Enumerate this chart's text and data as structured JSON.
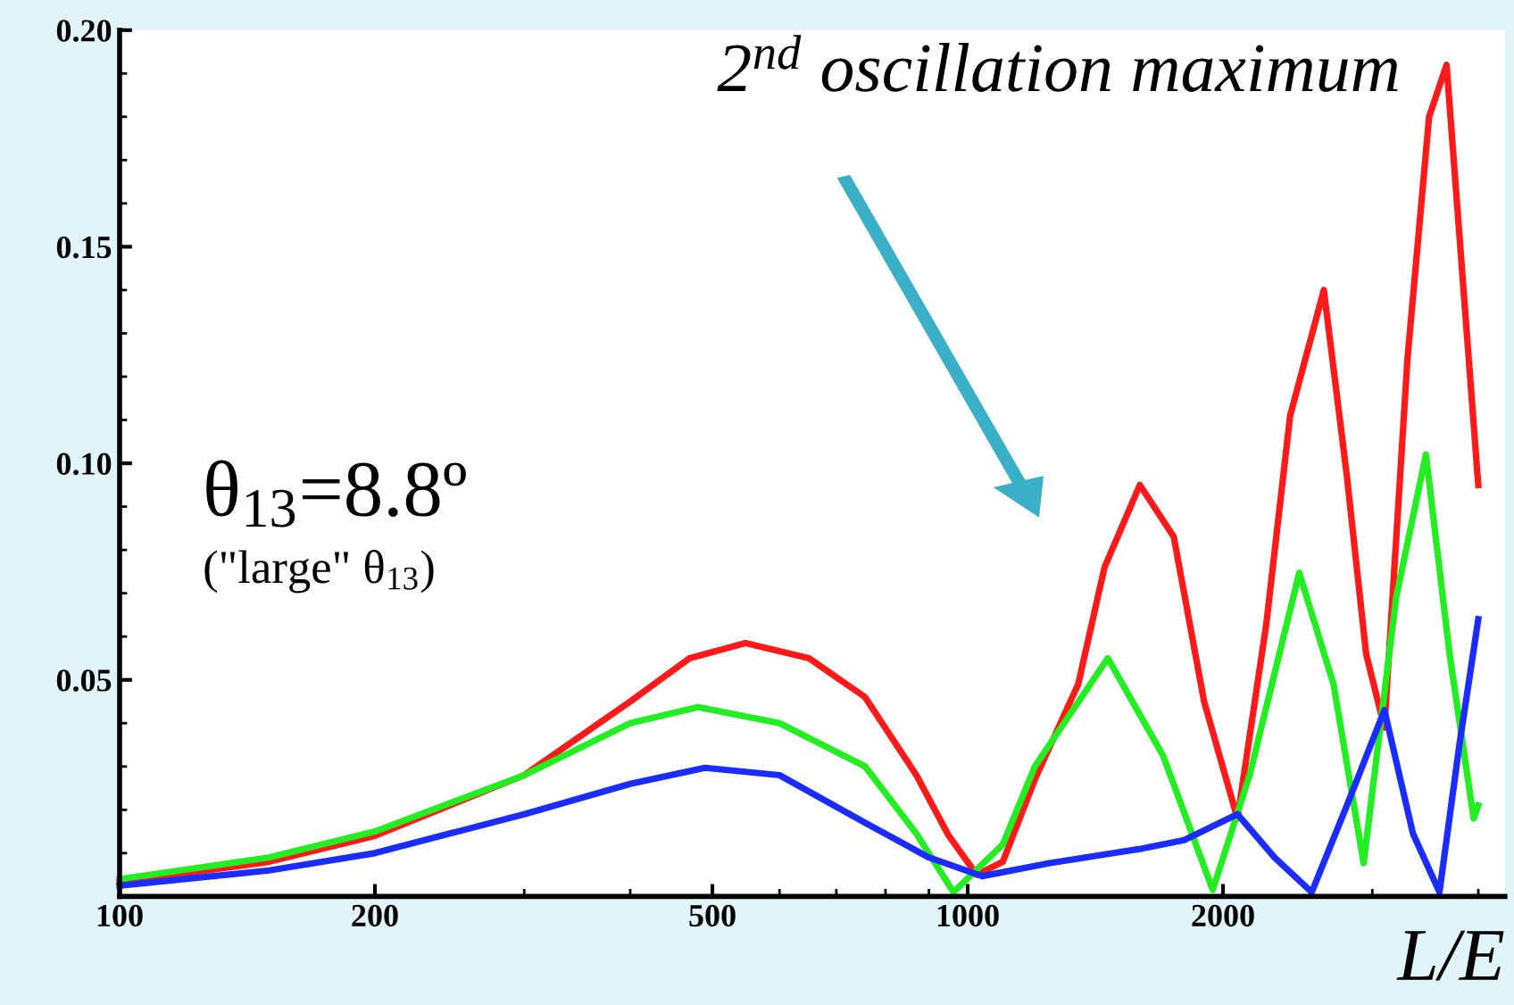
{
  "chart_data": {
    "type": "line",
    "xlabel": "L/E",
    "log": "x",
    "grid": false,
    "legend": false,
    "marker": "none",
    "line_style": "solid",
    "xlim": [
      100,
      4300
    ],
    "ylim": [
      0,
      0.2
    ],
    "xticks": [
      100,
      200,
      500,
      1000,
      2000
    ],
    "yticks": [
      0.05,
      {
        "value": 0.1,
        "label": "0.10"
      },
      0.15,
      {
        "value": 0.2,
        "label": "0.20"
      }
    ],
    "tick_labels": true,
    "annotations": [
      "2$^{nd}$ oscillation maximum",
      "θ$_{13}$=8.8º",
      "(\"large\" θ$_{13}$)"
    ],
    "series": [
      {
        "color": "#ff1a1a",
        "x": [
          100,
          150,
          200,
          300,
          400,
          470,
          547,
          650,
          757,
          870,
          950,
          1025,
          1100,
          1200,
          1350,
          1450,
          1596,
          1750,
          1900,
          2080,
          2250,
          2400,
          2630,
          2800,
          2950,
          3100,
          3300,
          3500,
          3670,
          3850,
          4000
        ],
        "values": [
          0.0033,
          0.008,
          0.014,
          0.028,
          0.045,
          0.055,
          0.0585,
          0.055,
          0.046,
          0.028,
          0.014,
          0.005,
          0.008,
          0.027,
          0.049,
          0.076,
          0.095,
          0.083,
          0.045,
          0.018,
          0.063,
          0.111,
          0.14,
          0.097,
          0.056,
          0.039,
          0.124,
          0.18,
          0.192,
          0.138,
          0.095
        ]
      },
      {
        "color": "#22ee22",
        "x": [
          100,
          150,
          200,
          300,
          400,
          481,
          600,
          757,
          870,
          962,
          1100,
          1200,
          1463,
          1700,
          1945,
          2150,
          2460,
          2700,
          2930,
          3200,
          3470,
          3700,
          3950,
          4000
        ],
        "values": [
          0.004,
          0.009,
          0.015,
          0.028,
          0.04,
          0.0437,
          0.04,
          0.03,
          0.0145,
          0.001,
          0.012,
          0.03,
          0.055,
          0.0325,
          0.0015,
          0.028,
          0.0747,
          0.049,
          0.0077,
          0.069,
          0.102,
          0.056,
          0.018,
          0.021
        ]
      },
      {
        "color": "#1a2cff",
        "x": [
          100,
          150,
          200,
          300,
          400,
          490,
          600,
          757,
          900,
          1040,
          1250,
          1600,
          1800,
          2080,
          2300,
          2545,
          2800,
          3100,
          3350,
          3600,
          3800,
          4000
        ],
        "values": [
          0.0025,
          0.006,
          0.01,
          0.019,
          0.026,
          0.0297,
          0.028,
          0.017,
          0.009,
          0.0047,
          0.0077,
          0.011,
          0.013,
          0.019,
          0.009,
          0.001,
          0.021,
          0.043,
          0.0145,
          0.001,
          0.035,
          0.064
        ]
      }
    ]
  }
}
